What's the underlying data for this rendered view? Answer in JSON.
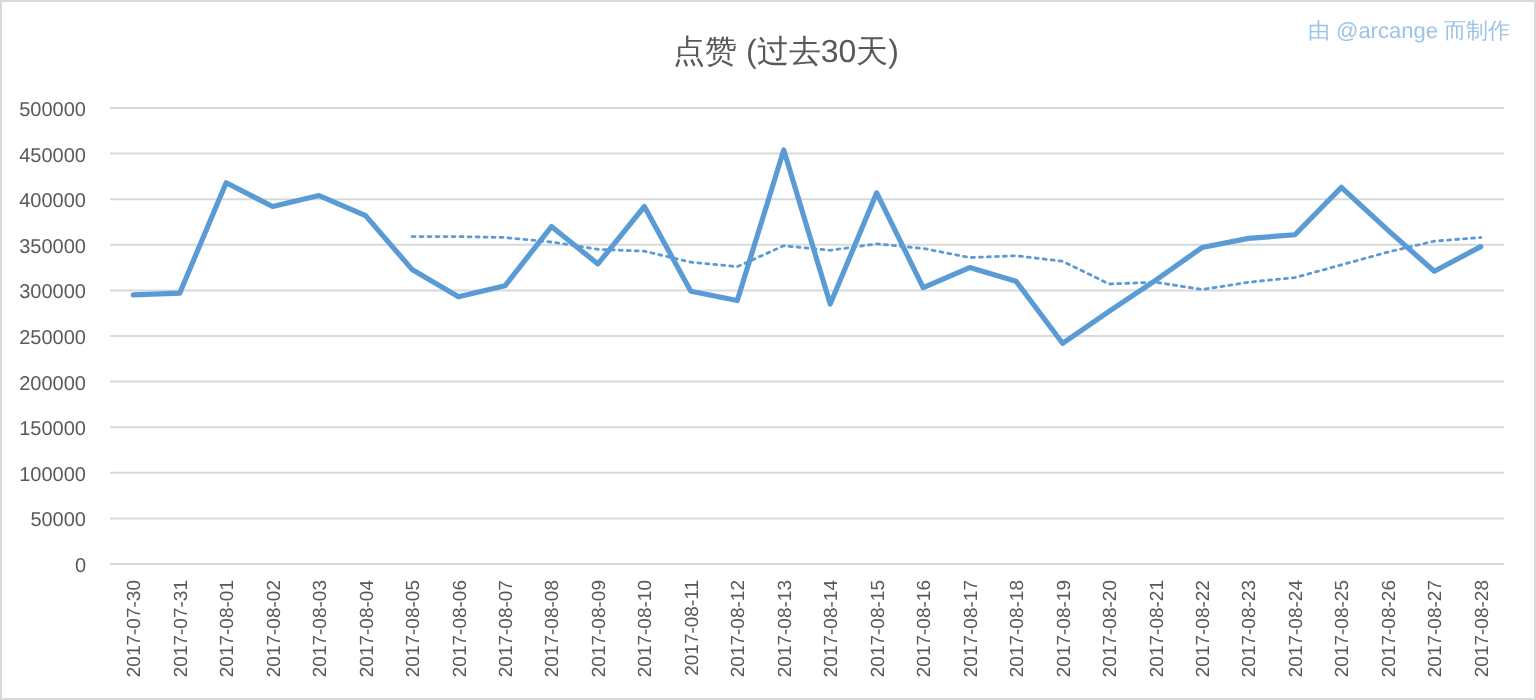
{
  "chart_data": {
    "type": "line",
    "title": "点赞 (过去30天)",
    "annotations": [
      "由 @arcange 而制作"
    ],
    "categories": [
      "2017-07-30",
      "2017-07-31",
      "2017-08-01",
      "2017-08-02",
      "2017-08-03",
      "2017-08-04",
      "2017-08-05",
      "2017-08-06",
      "2017-08-07",
      "2017-08-08",
      "2017-08-09",
      "2017-08-10",
      "2017-08-11",
      "2017-08-12",
      "2017-08-13",
      "2017-08-14",
      "2017-08-15",
      "2017-08-16",
      "2017-08-17",
      "2017-08-18",
      "2017-08-19",
      "2017-08-20",
      "2017-08-21",
      "2017-08-22",
      "2017-08-23",
      "2017-08-24",
      "2017-08-25",
      "2017-08-26",
      "2017-08-27",
      "2017-08-28"
    ],
    "series": [
      {
        "color": "#5b9bd5",
        "line_style": "solid",
        "values": [
          295000,
          297000,
          418000,
          392000,
          404000,
          382000,
          323000,
          293000,
          305000,
          370000,
          329000,
          392000,
          299000,
          289000,
          454000,
          285000,
          407000,
          303000,
          325000,
          310000,
          242000,
          277000,
          311000,
          347000,
          357000,
          361000,
          413000,
          366000,
          321000,
          348000
        ]
      },
      {
        "color": "#5b9bd5",
        "line_style": "dotted",
        "values": [
          null,
          null,
          null,
          null,
          null,
          null,
          359000,
          359000,
          358000,
          353000,
          345000,
          343000,
          331000,
          326000,
          349000,
          344000,
          351000,
          346000,
          336000,
          338000,
          332000,
          307000,
          309000,
          301000,
          309000,
          314000,
          328000,
          342000,
          354000,
          358000
        ]
      }
    ],
    "ylim": [
      0,
      500000
    ],
    "yticks": [
      0,
      50000,
      100000,
      150000,
      200000,
      250000,
      300000,
      350000,
      400000,
      450000,
      500000
    ],
    "grid": "y"
  }
}
